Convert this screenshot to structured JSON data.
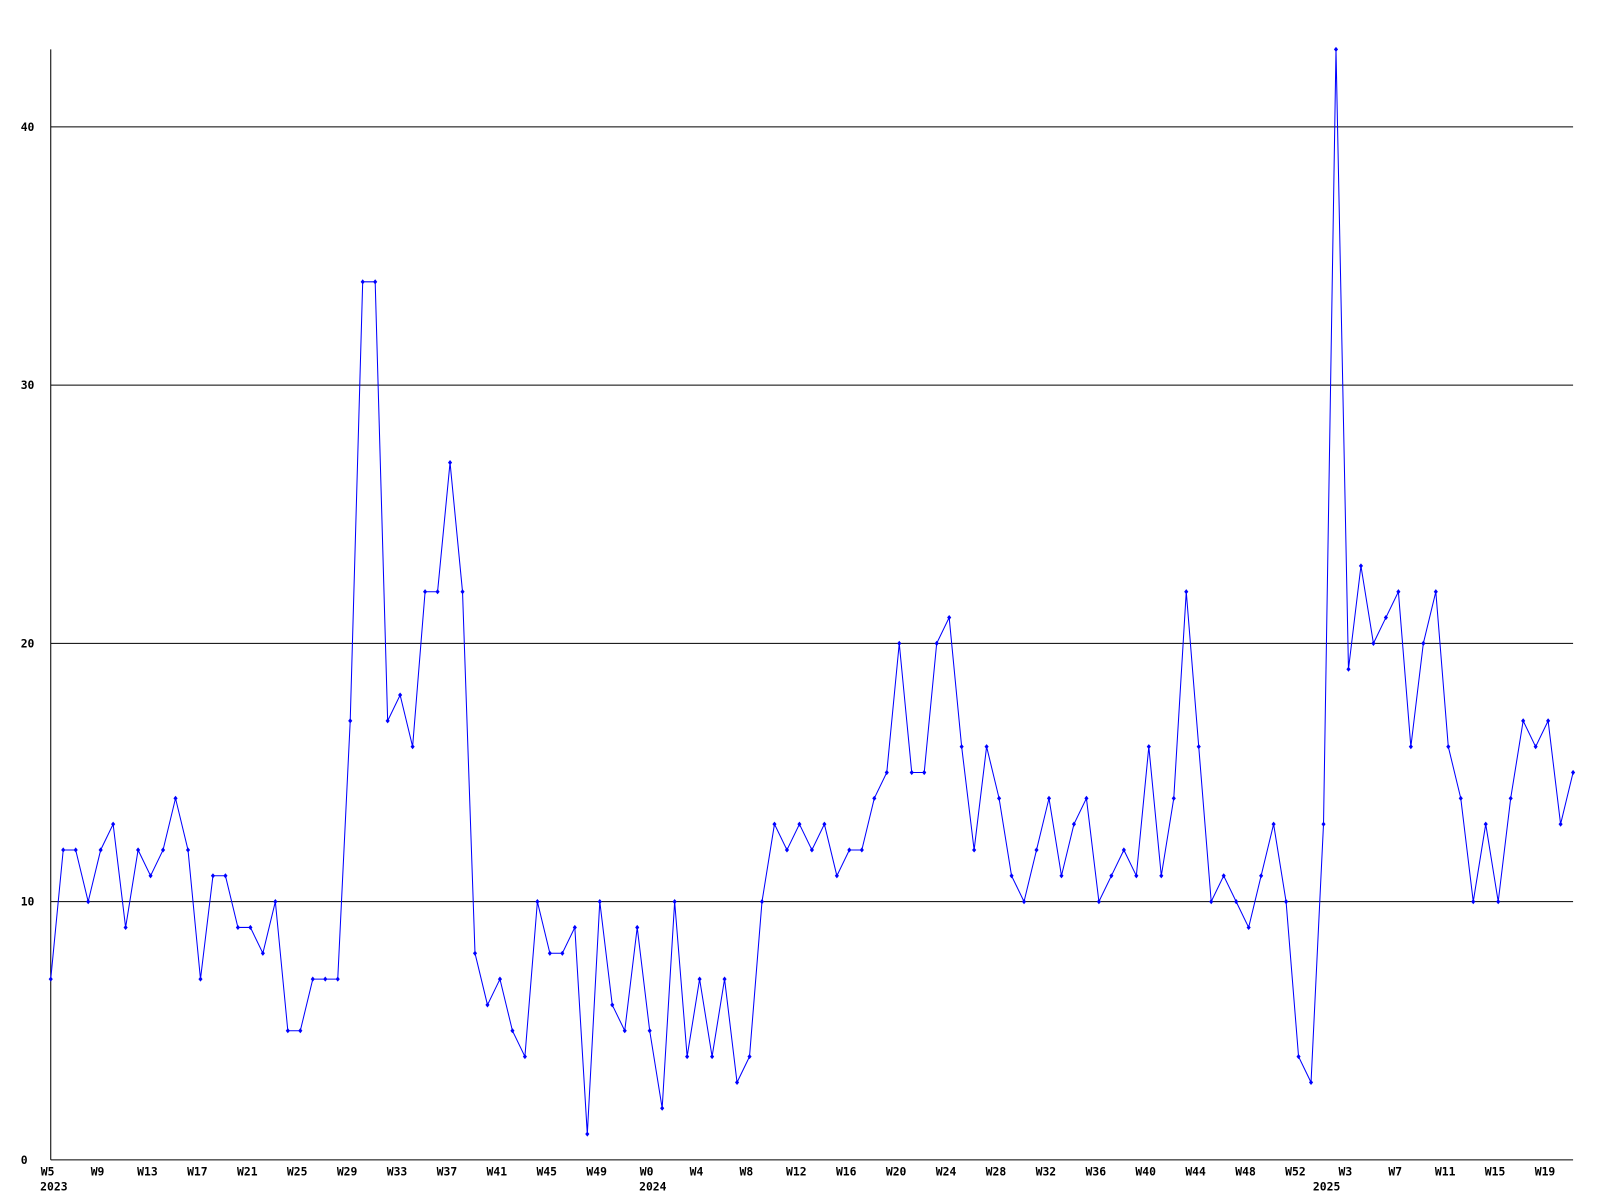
{
  "chart_data": {
    "type": "line",
    "categories": [
      "W5",
      null,
      null,
      null,
      "W9",
      null,
      null,
      null,
      "W13",
      null,
      null,
      null,
      "W17",
      null,
      null,
      null,
      "W21",
      null,
      null,
      null,
      "W25",
      null,
      null,
      null,
      "W29",
      null,
      null,
      null,
      "W33",
      null,
      null,
      null,
      "W37",
      null,
      null,
      null,
      "W41",
      null,
      null,
      null,
      "W45",
      null,
      null,
      null,
      "W49",
      null,
      null,
      null,
      "W0",
      null,
      null,
      null,
      "W4",
      null,
      null,
      null,
      "W8",
      null,
      null,
      null,
      "W12",
      null,
      null,
      null,
      "W16",
      null,
      null,
      null,
      "W20",
      null,
      null,
      null,
      "W24",
      null,
      null,
      null,
      "W28",
      null,
      null,
      null,
      "W32",
      null,
      null,
      null,
      "W36",
      null,
      null,
      null,
      "W40",
      null,
      null,
      null,
      "W44",
      null,
      null,
      null,
      "W48",
      null,
      null,
      null,
      "W52",
      null,
      null,
      null,
      "W3",
      null,
      null,
      null,
      "W7",
      null,
      null,
      null,
      "W11",
      null,
      null,
      null,
      "W15",
      null,
      null,
      null,
      "W19",
      null,
      null
    ],
    "category_years": [
      "2023",
      null,
      null,
      null,
      null,
      null,
      null,
      null,
      null,
      null,
      null,
      null,
      null,
      null,
      null,
      null,
      null,
      null,
      null,
      null,
      null,
      null,
      null,
      null,
      null,
      null,
      null,
      null,
      null,
      null,
      null,
      null,
      null,
      null,
      null,
      null,
      null,
      null,
      null,
      null,
      null,
      null,
      null,
      null,
      null,
      null,
      null,
      null,
      "2024",
      null,
      null,
      null,
      null,
      null,
      null,
      null,
      null,
      null,
      null,
      null,
      null,
      null,
      null,
      null,
      null,
      null,
      null,
      null,
      null,
      null,
      null,
      null,
      null,
      null,
      null,
      null,
      null,
      null,
      null,
      null,
      null,
      null,
      null,
      null,
      null,
      null,
      null,
      null,
      null,
      null,
      null,
      null,
      null,
      null,
      null,
      null,
      null,
      null,
      null,
      null,
      null,
      null,
      "2025",
      null,
      null,
      null,
      null,
      null,
      null,
      null,
      null,
      null,
      null,
      null,
      null,
      null,
      null,
      null,
      null,
      null,
      null
    ],
    "series": [
      {
        "color": "#0000ff",
        "values": [
          7,
          12,
          12,
          10,
          12,
          13,
          9,
          12,
          11,
          12,
          14,
          12,
          7,
          11,
          11,
          9,
          9,
          8,
          10,
          5,
          5,
          7,
          7,
          7,
          17,
          34,
          34,
          17,
          18,
          16,
          22,
          22,
          27,
          22,
          8,
          6,
          7,
          5,
          4,
          10,
          8,
          8,
          9,
          1,
          10,
          6,
          5,
          9,
          5,
          2,
          10,
          4,
          7,
          4,
          7,
          3,
          4,
          10,
          13,
          12,
          13,
          12,
          13,
          11,
          12,
          12,
          14,
          15,
          20,
          15,
          15,
          20,
          21,
          16,
          12,
          16,
          14,
          11,
          10,
          12,
          14,
          11,
          13,
          14,
          10,
          11,
          12,
          11,
          16,
          11,
          14,
          22,
          16,
          10,
          11,
          10,
          9,
          11,
          13,
          10,
          4,
          3,
          13,
          43,
          19,
          23,
          20,
          21,
          22,
          16,
          20,
          22,
          16,
          14,
          10,
          13,
          10,
          14,
          17,
          16,
          17,
          13,
          15
        ]
      }
    ],
    "ylim": [
      0,
      43
    ],
    "yticks": [
      0,
      10,
      20,
      30,
      40
    ],
    "grid": true
  }
}
